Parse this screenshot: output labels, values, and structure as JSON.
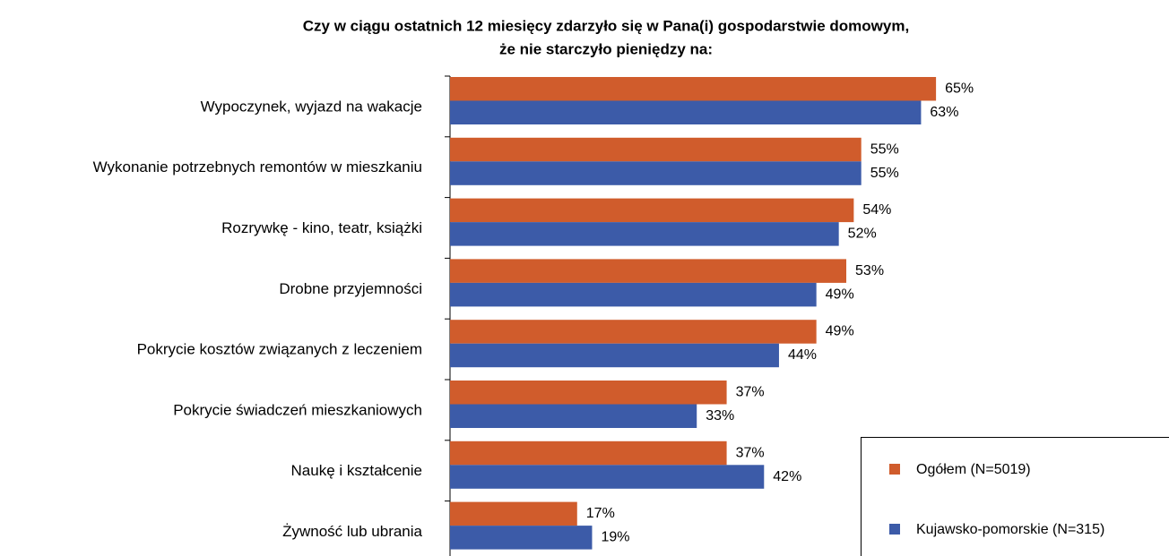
{
  "chart_data": {
    "type": "bar",
    "orientation": "horizontal",
    "title": [
      "Czy w ciągu ostatnich 12 miesięcy zdarzyło się w Pana(i) gospodarstwie domowym,",
      "że nie starczyło pieniędzy na:"
    ],
    "categories": [
      "Wypoczynek, wyjazd na wakacje",
      "Wykonanie potrzebnych remontów w mieszkaniu",
      "Rozrywkę - kino, teatr, książki",
      "Drobne przyjemności",
      "Pokrycie kosztów związanych z leczeniem",
      "Pokrycie świadczeń mieszkaniowych",
      "Naukę i kształcenie",
      "Żywność lub ubrania"
    ],
    "series": [
      {
        "name": "Ogółem (N=5019)",
        "color": "#d05c2c",
        "values": [
          65,
          55,
          54,
          53,
          49,
          37,
          37,
          17
        ],
        "value_labels": [
          "65%",
          "55%",
          "54%",
          "53%",
          "49%",
          "37%",
          "37%",
          "17%"
        ]
      },
      {
        "name": "Kujawsko-pomorskie (N=315)",
        "color": "#3c5ba8",
        "values": [
          63,
          55,
          52,
          49,
          44,
          33,
          42,
          19
        ],
        "value_labels": [
          "63%",
          "55%",
          "52%",
          "49%",
          "44%",
          "33%",
          "42%",
          "19%"
        ]
      }
    ],
    "legend": "lower right"
  }
}
